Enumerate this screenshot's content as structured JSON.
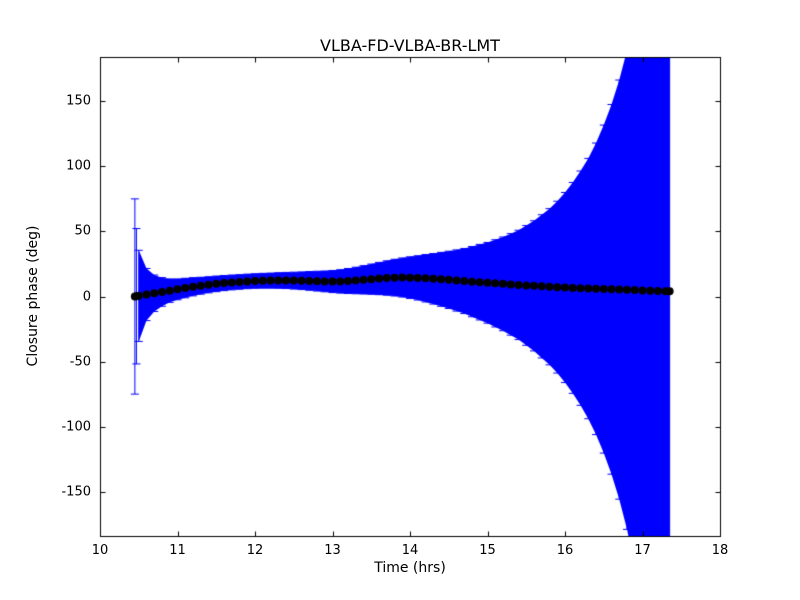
{
  "figure": {
    "background": "#ffffff",
    "axes_color": "#000000"
  },
  "chart_data": {
    "type": "scatter",
    "subtype": "errorbar",
    "title": "VLBA-FD-VLBA-BR-LMT",
    "xlabel": "Time (hrs)",
    "ylabel": "Closure phase (deg)",
    "xlim": [
      10,
      18
    ],
    "ylim": [
      -184,
      184
    ],
    "xticks": [
      10,
      11,
      12,
      13,
      14,
      15,
      16,
      17,
      18
    ],
    "yticks": [
      -150,
      -100,
      -50,
      0,
      50,
      100,
      150
    ],
    "grid": false,
    "legend": null,
    "marker_color": "#000000",
    "errorbar_color": "#0000ff",
    "series_name": "closure phase with error bars",
    "columns": [
      "time_hrs",
      "closure_phase_deg",
      "phase_error_deg"
    ],
    "points": [
      [
        10.45,
        0.0,
        75.0
      ],
      [
        10.47,
        0.2,
        52.0
      ],
      [
        10.5,
        0.5,
        35.0
      ],
      [
        10.6,
        1.5,
        20.0
      ],
      [
        10.7,
        2.5,
        14.0
      ],
      [
        10.8,
        3.5,
        11.0
      ],
      [
        10.9,
        4.5,
        9.0
      ],
      [
        11.0,
        5.5,
        8.0
      ],
      [
        11.1,
        6.5,
        7.5
      ],
      [
        11.2,
        7.5,
        7.0
      ],
      [
        11.3,
        8.3,
        6.5
      ],
      [
        11.4,
        9.0,
        6.2
      ],
      [
        11.5,
        9.7,
        6.0
      ],
      [
        11.6,
        10.3,
        5.8
      ],
      [
        11.7,
        10.8,
        5.7
      ],
      [
        11.8,
        11.2,
        5.6
      ],
      [
        11.9,
        11.6,
        5.6
      ],
      [
        12.0,
        11.9,
        5.6
      ],
      [
        12.1,
        12.1,
        5.7
      ],
      [
        12.2,
        12.2,
        5.8
      ],
      [
        12.3,
        12.3,
        6.0
      ],
      [
        12.4,
        12.3,
        6.2
      ],
      [
        12.5,
        12.2,
        6.5
      ],
      [
        12.6,
        12.1,
        6.8
      ],
      [
        12.7,
        12.0,
        7.2
      ],
      [
        12.8,
        11.8,
        7.6
      ],
      [
        12.9,
        11.6,
        8.0
      ],
      [
        13.0,
        11.5,
        8.5
      ],
      [
        13.1,
        11.6,
        9.0
      ],
      [
        13.2,
        11.9,
        9.6
      ],
      [
        13.3,
        12.3,
        10.2
      ],
      [
        13.4,
        12.8,
        10.9
      ],
      [
        13.5,
        13.3,
        11.6
      ],
      [
        13.6,
        13.8,
        12.4
      ],
      [
        13.7,
        14.2,
        13.2
      ],
      [
        13.8,
        14.5,
        14.1
      ],
      [
        13.9,
        14.6,
        15.0
      ],
      [
        14.0,
        14.5,
        16.0
      ],
      [
        14.1,
        14.3,
        17.0
      ],
      [
        14.2,
        14.0,
        18.2
      ],
      [
        14.3,
        13.6,
        19.4
      ],
      [
        14.4,
        13.2,
        20.7
      ],
      [
        14.5,
        12.8,
        22.0
      ],
      [
        14.6,
        12.3,
        23.5
      ],
      [
        14.7,
        11.9,
        25.0
      ],
      [
        14.8,
        11.4,
        27.0
      ],
      [
        14.9,
        11.0,
        29.0
      ],
      [
        15.0,
        10.5,
        31.0
      ],
      [
        15.1,
        10.1,
        33.5
      ],
      [
        15.2,
        9.7,
        36.0
      ],
      [
        15.3,
        9.3,
        39.0
      ],
      [
        15.4,
        8.9,
        42.0
      ],
      [
        15.5,
        8.5,
        46.0
      ],
      [
        15.6,
        8.2,
        50.0
      ],
      [
        15.7,
        7.8,
        55.0
      ],
      [
        15.8,
        7.5,
        60.0
      ],
      [
        15.9,
        7.2,
        66.0
      ],
      [
        16.0,
        6.9,
        73.0
      ],
      [
        16.1,
        6.6,
        81.0
      ],
      [
        16.2,
        6.4,
        90.0
      ],
      [
        16.3,
        6.1,
        100.0
      ],
      [
        16.4,
        5.9,
        112.0
      ],
      [
        16.5,
        5.7,
        126.0
      ],
      [
        16.6,
        5.5,
        142.0
      ],
      [
        16.7,
        5.3,
        161.0
      ],
      [
        16.8,
        5.1,
        184.0
      ],
      [
        16.9,
        4.9,
        212.0
      ],
      [
        17.0,
        4.7,
        248.0
      ],
      [
        17.1,
        4.5,
        295.0
      ],
      [
        17.2,
        4.3,
        360.0
      ],
      [
        17.3,
        4.1,
        455.0
      ],
      [
        17.35,
        4.0,
        520.0
      ]
    ]
  }
}
